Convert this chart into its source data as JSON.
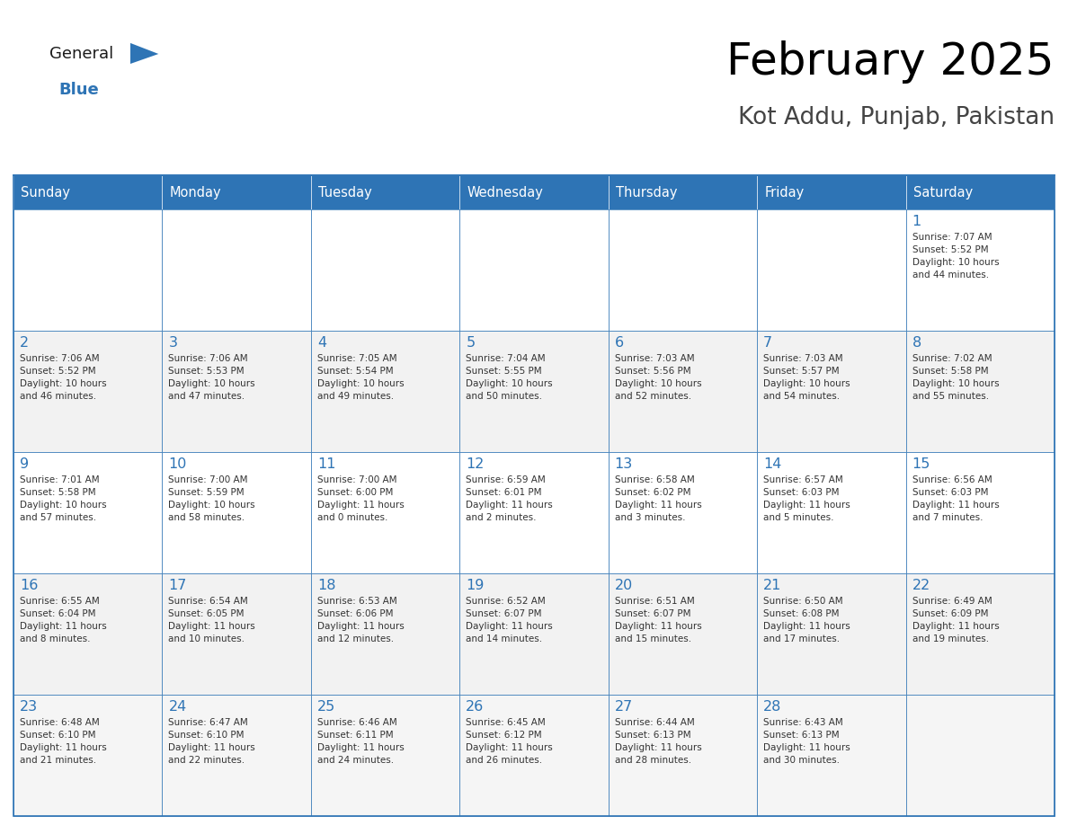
{
  "title": "February 2025",
  "subtitle": "Kot Addu, Punjab, Pakistan",
  "days_of_week": [
    "Sunday",
    "Monday",
    "Tuesday",
    "Wednesday",
    "Thursday",
    "Friday",
    "Saturday"
  ],
  "header_bg": "#2E74B5",
  "header_text": "#FFFFFF",
  "border_color": "#2E74B5",
  "day_num_color": "#2E74B5",
  "logo_general_color": "#1a1a1a",
  "logo_blue_color": "#2E74B5",
  "calendar_data": [
    [
      {
        "day": null,
        "info": null
      },
      {
        "day": null,
        "info": null
      },
      {
        "day": null,
        "info": null
      },
      {
        "day": null,
        "info": null
      },
      {
        "day": null,
        "info": null
      },
      {
        "day": null,
        "info": null
      },
      {
        "day": 1,
        "info": "Sunrise: 7:07 AM\nSunset: 5:52 PM\nDaylight: 10 hours\nand 44 minutes."
      }
    ],
    [
      {
        "day": 2,
        "info": "Sunrise: 7:06 AM\nSunset: 5:52 PM\nDaylight: 10 hours\nand 46 minutes."
      },
      {
        "day": 3,
        "info": "Sunrise: 7:06 AM\nSunset: 5:53 PM\nDaylight: 10 hours\nand 47 minutes."
      },
      {
        "day": 4,
        "info": "Sunrise: 7:05 AM\nSunset: 5:54 PM\nDaylight: 10 hours\nand 49 minutes."
      },
      {
        "day": 5,
        "info": "Sunrise: 7:04 AM\nSunset: 5:55 PM\nDaylight: 10 hours\nand 50 minutes."
      },
      {
        "day": 6,
        "info": "Sunrise: 7:03 AM\nSunset: 5:56 PM\nDaylight: 10 hours\nand 52 minutes."
      },
      {
        "day": 7,
        "info": "Sunrise: 7:03 AM\nSunset: 5:57 PM\nDaylight: 10 hours\nand 54 minutes."
      },
      {
        "day": 8,
        "info": "Sunrise: 7:02 AM\nSunset: 5:58 PM\nDaylight: 10 hours\nand 55 minutes."
      }
    ],
    [
      {
        "day": 9,
        "info": "Sunrise: 7:01 AM\nSunset: 5:58 PM\nDaylight: 10 hours\nand 57 minutes."
      },
      {
        "day": 10,
        "info": "Sunrise: 7:00 AM\nSunset: 5:59 PM\nDaylight: 10 hours\nand 58 minutes."
      },
      {
        "day": 11,
        "info": "Sunrise: 7:00 AM\nSunset: 6:00 PM\nDaylight: 11 hours\nand 0 minutes."
      },
      {
        "day": 12,
        "info": "Sunrise: 6:59 AM\nSunset: 6:01 PM\nDaylight: 11 hours\nand 2 minutes."
      },
      {
        "day": 13,
        "info": "Sunrise: 6:58 AM\nSunset: 6:02 PM\nDaylight: 11 hours\nand 3 minutes."
      },
      {
        "day": 14,
        "info": "Sunrise: 6:57 AM\nSunset: 6:03 PM\nDaylight: 11 hours\nand 5 minutes."
      },
      {
        "day": 15,
        "info": "Sunrise: 6:56 AM\nSunset: 6:03 PM\nDaylight: 11 hours\nand 7 minutes."
      }
    ],
    [
      {
        "day": 16,
        "info": "Sunrise: 6:55 AM\nSunset: 6:04 PM\nDaylight: 11 hours\nand 8 minutes."
      },
      {
        "day": 17,
        "info": "Sunrise: 6:54 AM\nSunset: 6:05 PM\nDaylight: 11 hours\nand 10 minutes."
      },
      {
        "day": 18,
        "info": "Sunrise: 6:53 AM\nSunset: 6:06 PM\nDaylight: 11 hours\nand 12 minutes."
      },
      {
        "day": 19,
        "info": "Sunrise: 6:52 AM\nSunset: 6:07 PM\nDaylight: 11 hours\nand 14 minutes."
      },
      {
        "day": 20,
        "info": "Sunrise: 6:51 AM\nSunset: 6:07 PM\nDaylight: 11 hours\nand 15 minutes."
      },
      {
        "day": 21,
        "info": "Sunrise: 6:50 AM\nSunset: 6:08 PM\nDaylight: 11 hours\nand 17 minutes."
      },
      {
        "day": 22,
        "info": "Sunrise: 6:49 AM\nSunset: 6:09 PM\nDaylight: 11 hours\nand 19 minutes."
      }
    ],
    [
      {
        "day": 23,
        "info": "Sunrise: 6:48 AM\nSunset: 6:10 PM\nDaylight: 11 hours\nand 21 minutes."
      },
      {
        "day": 24,
        "info": "Sunrise: 6:47 AM\nSunset: 6:10 PM\nDaylight: 11 hours\nand 22 minutes."
      },
      {
        "day": 25,
        "info": "Sunrise: 6:46 AM\nSunset: 6:11 PM\nDaylight: 11 hours\nand 24 minutes."
      },
      {
        "day": 26,
        "info": "Sunrise: 6:45 AM\nSunset: 6:12 PM\nDaylight: 11 hours\nand 26 minutes."
      },
      {
        "day": 27,
        "info": "Sunrise: 6:44 AM\nSunset: 6:13 PM\nDaylight: 11 hours\nand 28 minutes."
      },
      {
        "day": 28,
        "info": "Sunrise: 6:43 AM\nSunset: 6:13 PM\nDaylight: 11 hours\nand 30 minutes."
      },
      {
        "day": null,
        "info": null
      }
    ]
  ],
  "num_weeks": 5,
  "num_cols": 7
}
